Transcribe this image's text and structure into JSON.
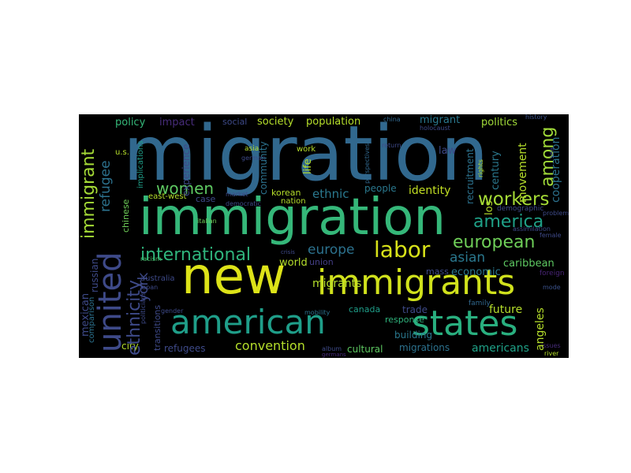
{
  "cloud": {
    "background": "#000000",
    "colormap": "viridis",
    "words": {
      "migration": "migration",
      "immigration": "immigration",
      "new": "new",
      "immigrants": "immigrants",
      "american": "american",
      "states": "states",
      "united": "united",
      "labor": "labor",
      "international": "international",
      "european": "european",
      "america": "america",
      "workers": "workers",
      "women": "women",
      "immigrant": "immigrant",
      "ethnicity": "ethnicity",
      "europe": "europe",
      "asian": "asian",
      "ethnic": "ethnic",
      "convention": "convention",
      "migrants": "migrants",
      "refugee": "refugee",
      "refugees": "refugees",
      "among": "among",
      "policy": "policy",
      "impact": "impact",
      "social": "social",
      "society": "society",
      "population": "population",
      "politics": "politics",
      "migrant": "migrant",
      "history": "history",
      "identity": "identity",
      "movement": "movement",
      "cooperation": "cooperation",
      "economic": "economic",
      "caribbean": "caribbean",
      "future": "future",
      "angeles": "angeles",
      "los": "los",
      "americans": "americans",
      "migrations": "migrations",
      "cultural": "cultural",
      "york": "york",
      "city": "city",
      "mexican": "mexican",
      "russian": "russian",
      "chinese": "chinese",
      "world": "world",
      "union": "union",
      "mass": "mass",
      "trade": "trade",
      "building": "building",
      "response": "response",
      "canada": "canada",
      "korean": "korean",
      "nation": "nation",
      "people": "people",
      "century": "century",
      "law": "law",
      "life": "life",
      "work": "work",
      "asia": "asia",
      "community": "community",
      "experience": "experience",
      "case": "case",
      "eastwest": "east-west",
      "australia": "australia",
      "italian": "italian",
      "implications": "implications",
      "us": "u.s.",
      "racism": "racism",
      "comparison": "comparison",
      "transitions": "transitions",
      "recruitment": "recruitment",
      "rights": "rights",
      "family": "family",
      "demographic": "demographic",
      "female": "female",
      "foreign": "foreign",
      "issues": "issues",
      "river": "river",
      "mobility": "mobility",
      "album": "album",
      "china": "china",
      "holocaust": "holocaust",
      "return": "return",
      "democratic": "democratic",
      "market": "market",
      "german": "german",
      "problem": "problem",
      "assimilation": "assimilation",
      "mode": "mode",
      "politicians": "politicians",
      "japan": "japan",
      "gender": "gender",
      "germans": "germans",
      "perspectives": "perspectives",
      "sea": "sea",
      "crisis": "crisis"
    }
  }
}
